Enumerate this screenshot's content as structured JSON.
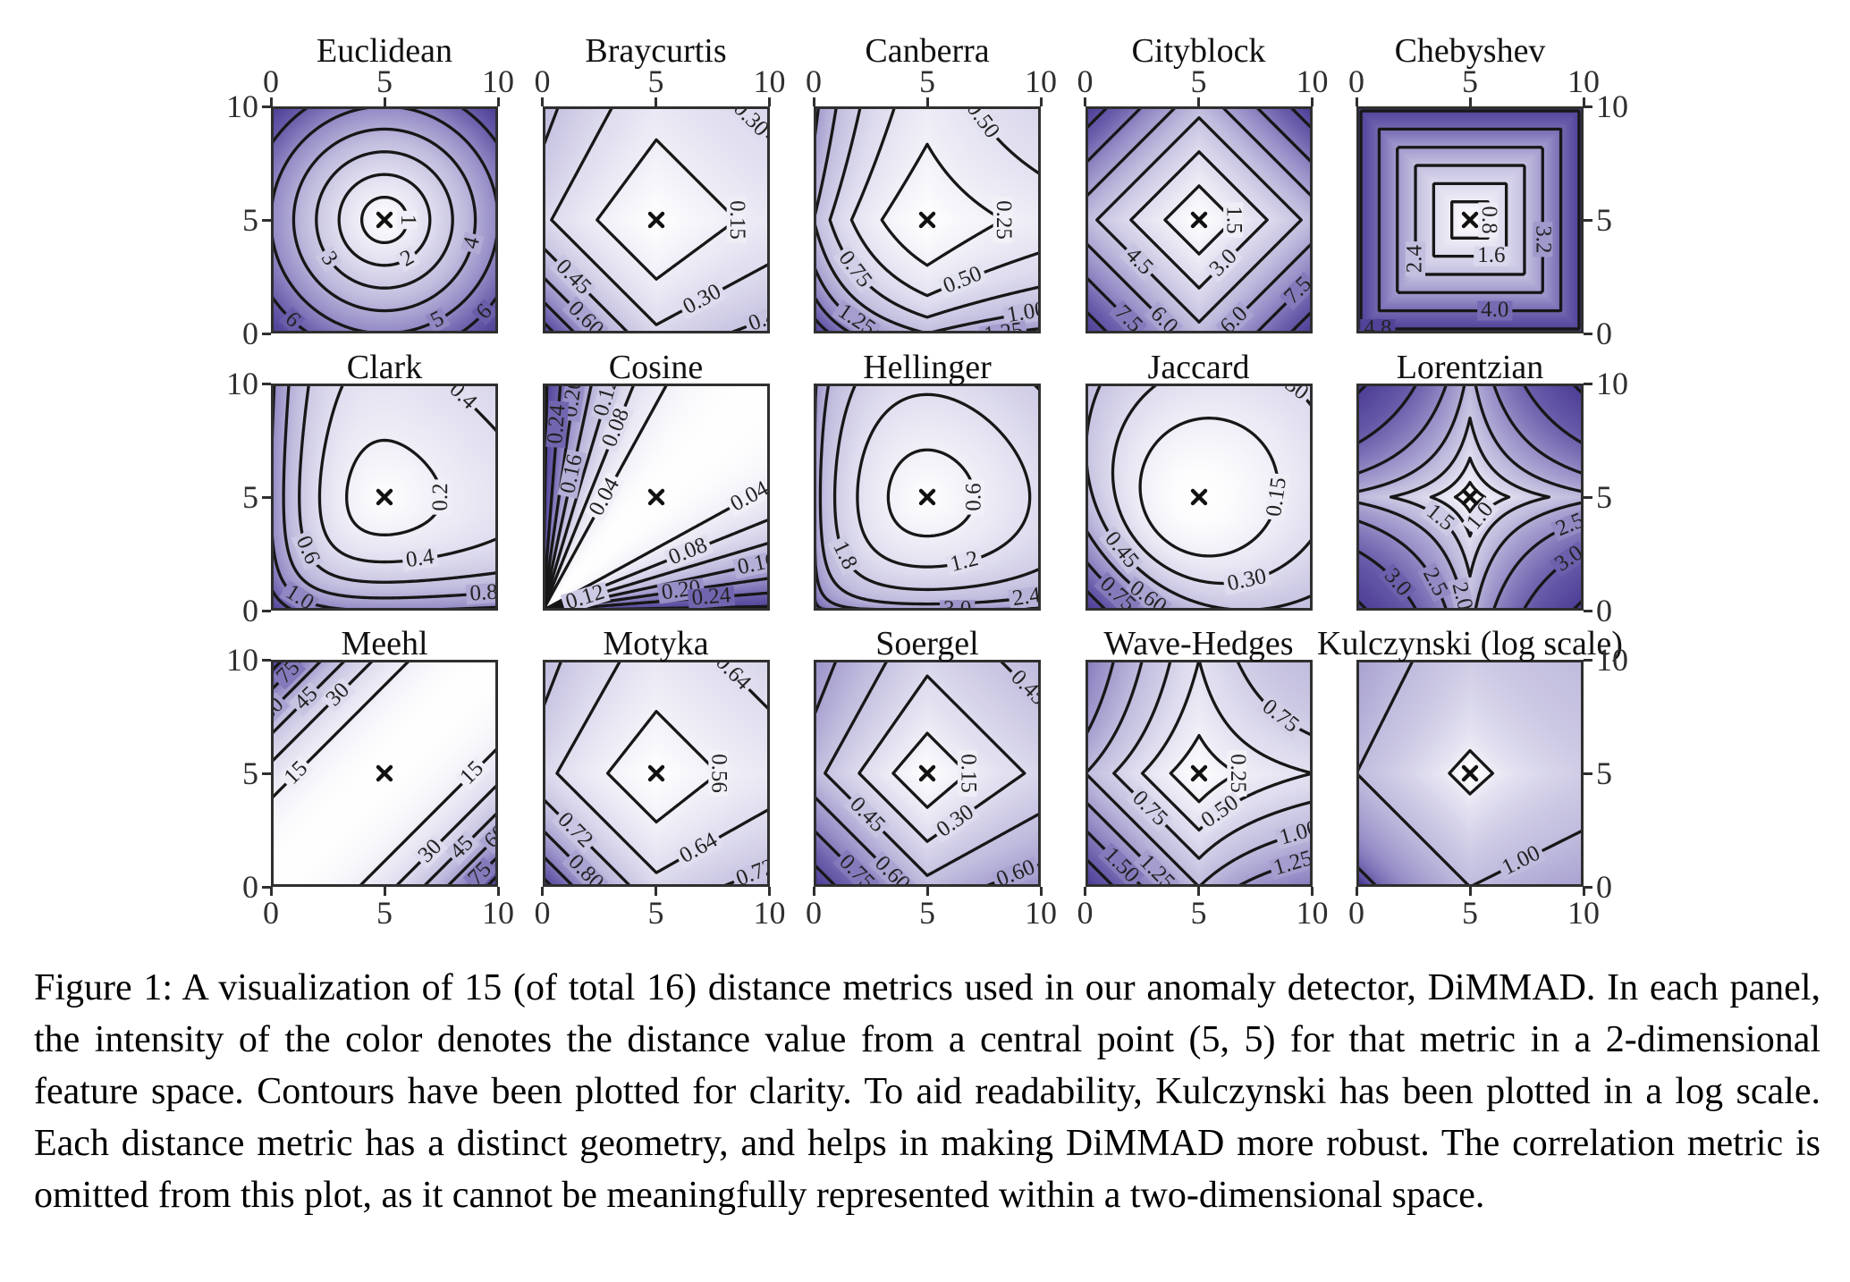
{
  "figure": {
    "caption": "Figure 1: A visualization of 15 (of total 16) distance metrics used in our anomaly detector, DiMMAD. In each panel, the intensity of the color denotes the distance value from a central point (5, 5) for that metric in a 2-dimensional feature space. Contours have been plotted for clarity. To aid readability, Kulczynski has been plotted in a log scale. Each distance metric has a distinct geometry, and helps in making DiMMAD more robust. The correlation metric is omitted from this plot, as it cannot be meaningfully represented within a two-dimensional space."
  },
  "chart_data": {
    "type": "heatmap",
    "subtype": "contour-grid",
    "center_point": [
      5,
      5
    ],
    "marker": "x",
    "axis": {
      "range": [
        0,
        10
      ],
      "x_ticks": [
        "0",
        "5",
        "10"
      ],
      "y_ticks": [
        "10",
        "5",
        "0"
      ]
    },
    "colors": {
      "colormap_low": "#ffffff",
      "colormap_mid": "#c0bcde",
      "colormap_high": "#4a3a94",
      "contour_line": "#171717",
      "spine": "#2f2f2f"
    },
    "panels": [
      {
        "title": "Euclidean",
        "metric": "euclidean",
        "scale": "linear",
        "levels": [
          1,
          2,
          3,
          4,
          5,
          6
        ],
        "labels": [
          "1",
          "2",
          "3",
          "4",
          "5",
          "6"
        ]
      },
      {
        "title": "Braycurtis",
        "metric": "braycurtis",
        "scale": "linear",
        "levels": [
          0.15,
          0.3,
          0.45,
          0.6,
          0.75,
          0.9
        ],
        "labels": [
          "0.15",
          "0.30",
          "0.45",
          "0.60",
          "",
          ""
        ]
      },
      {
        "title": "Canberra",
        "metric": "canberra",
        "scale": "linear",
        "levels": [
          0.25,
          0.5,
          0.75,
          1.0,
          1.25,
          1.5,
          1.75
        ],
        "labels": [
          "0.25",
          "0.50",
          "0.75",
          "1.00",
          "1.25",
          "",
          ""
        ]
      },
      {
        "title": "Cityblock",
        "metric": "cityblock",
        "scale": "linear",
        "levels": [
          1.5,
          3.0,
          4.5,
          6.0,
          7.5,
          9.0
        ],
        "labels": [
          "1.5",
          "3.0",
          "4.5",
          "6.0",
          "7.5",
          ""
        ]
      },
      {
        "title": "Chebyshev",
        "metric": "chebyshev",
        "scale": "linear",
        "levels": [
          0.8,
          1.6,
          2.4,
          3.2,
          4.0,
          4.8
        ],
        "labels": [
          "0.8",
          "1.6",
          "2.4",
          "3.2",
          "4.0",
          "4.8"
        ]
      },
      {
        "title": "Clark",
        "metric": "clark",
        "scale": "linear",
        "levels": [
          0.2,
          0.4,
          0.6,
          0.8,
          1.0,
          1.2
        ],
        "labels": [
          "0.2",
          "0.4",
          "0.6",
          "0.8",
          "1.0",
          ""
        ]
      },
      {
        "title": "Cosine",
        "metric": "cosine",
        "scale": "linear",
        "levels": [
          0.04,
          0.08,
          0.12,
          0.16,
          0.2,
          0.24,
          0.28
        ],
        "labels": [
          "0.04",
          "0.08",
          "0.12",
          "0.16",
          "0.20",
          "0.24",
          ""
        ]
      },
      {
        "title": "Hellinger",
        "metric": "hellinger",
        "scale": "linear",
        "levels": [
          0.6,
          1.2,
          1.8,
          2.4,
          3.0,
          3.6,
          4.2
        ],
        "labels": [
          "0.6",
          "1.2",
          "1.8",
          "2.4",
          "3.0",
          "",
          ""
        ]
      },
      {
        "title": "Jaccard",
        "metric": "jaccard",
        "scale": "linear",
        "levels": [
          0.15,
          0.3,
          0.45,
          0.6,
          0.75,
          0.9
        ],
        "labels": [
          "0.15",
          "0.30",
          "0.45",
          "0.60",
          "0.75",
          ""
        ]
      },
      {
        "title": "Lorentzian",
        "metric": "lorentzian",
        "scale": "linear",
        "levels": [
          0.5,
          1.0,
          1.5,
          2.0,
          2.5,
          3.0,
          3.5
        ],
        "labels": [
          "",
          "1.0",
          "1.5",
          "2.0",
          "2.5",
          "3.0",
          ""
        ]
      },
      {
        "title": "Meehl",
        "metric": "meehl",
        "scale": "linear",
        "levels": [
          15,
          30,
          45,
          60,
          75,
          90
        ],
        "labels": [
          "15",
          "30",
          "45",
          "60",
          "75",
          ""
        ]
      },
      {
        "title": "Motyka",
        "metric": "motyka",
        "scale": "linear",
        "levels": [
          0.56,
          0.64,
          0.72,
          0.8,
          0.88,
          0.96
        ],
        "labels": [
          "0.56",
          "0.64",
          "0.72",
          "0.80",
          "",
          ""
        ]
      },
      {
        "title": "Soergel",
        "metric": "soergel",
        "scale": "linear",
        "levels": [
          0.15,
          0.3,
          0.45,
          0.6,
          0.75,
          0.9
        ],
        "labels": [
          "0.15",
          "0.30",
          "0.45",
          "0.60",
          "0.75",
          ""
        ]
      },
      {
        "title": "Wave-Hedges",
        "metric": "wavehedges",
        "scale": "linear",
        "levels": [
          0.25,
          0.5,
          0.75,
          1.0,
          1.25,
          1.5,
          1.75
        ],
        "labels": [
          "0.25",
          "0.50",
          "0.75",
          "1.00",
          "1.25",
          "1.50",
          ""
        ]
      },
      {
        "title": "Kulczynski (log scale)",
        "metric": "kulczynski",
        "scale": "log",
        "levels": [
          0.1,
          1.0,
          10.0
        ],
        "labels": [
          "",
          "1.00",
          ""
        ]
      }
    ]
  }
}
